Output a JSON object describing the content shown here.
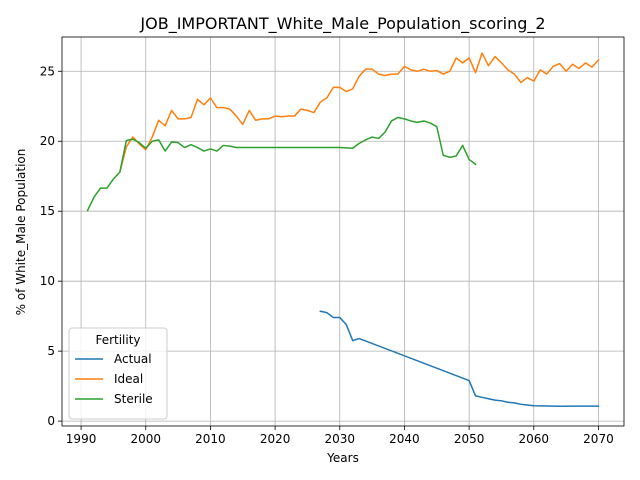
{
  "chart_data": {
    "type": "line",
    "title": "JOB_IMPORTANT_White_Male_Population_scoring_2",
    "xlabel": "Years",
    "ylabel": "% of White_Male Population",
    "xlim": [
      1987.05,
      2073.95
    ],
    "ylim": [
      -0.35,
      27.45
    ],
    "xticks": [
      1990,
      2000,
      2010,
      2020,
      2030,
      2040,
      2050,
      2060,
      2070
    ],
    "yticks": [
      0,
      5,
      10,
      15,
      20,
      25
    ],
    "grid": true,
    "legend": {
      "title": "Fertility",
      "position": "lower-left"
    },
    "series": [
      {
        "name": "Actual",
        "color": "#1f77b4",
        "x": [
          2027,
          2028,
          2029,
          2030,
          2031,
          2032,
          2033,
          2050,
          2051,
          2052,
          2053,
          2054,
          2055,
          2056,
          2057,
          2058,
          2059,
          2060,
          2062,
          2064,
          2066,
          2068,
          2070
        ],
        "y": [
          7.85,
          7.75,
          7.4,
          7.4,
          6.9,
          5.75,
          5.9,
          2.9,
          1.8,
          1.7,
          1.6,
          1.5,
          1.45,
          1.35,
          1.3,
          1.2,
          1.15,
          1.1,
          1.08,
          1.06,
          1.07,
          1.07,
          1.07
        ]
      },
      {
        "name": "Ideal",
        "color": "#ff7f0e",
        "x": [
          1996,
          1997,
          1998,
          1999,
          2000,
          2001,
          2002,
          2003,
          2004,
          2005,
          2006,
          2007,
          2008,
          2009,
          2010,
          2011,
          2012,
          2013,
          2014,
          2015,
          2016,
          2017,
          2018,
          2019,
          2020,
          2021,
          2022,
          2023,
          2024,
          2025,
          2026,
          2027,
          2028,
          2029,
          2030,
          2031,
          2032,
          2033,
          2034,
          2035,
          2036,
          2037,
          2038,
          2039,
          2040,
          2041,
          2042,
          2043,
          2044,
          2045,
          2046,
          2047,
          2048,
          2049,
          2050,
          2051,
          2052,
          2053,
          2054,
          2055,
          2056,
          2057,
          2058,
          2059,
          2060,
          2061,
          2062,
          2063,
          2064,
          2065,
          2066,
          2067,
          2068,
          2069,
          2070
        ],
        "y": [
          17.8,
          19.6,
          20.3,
          19.8,
          19.4,
          20.3,
          21.5,
          21.1,
          22.2,
          21.6,
          21.6,
          21.7,
          23.0,
          22.6,
          23.1,
          22.4,
          22.4,
          22.3,
          21.8,
          21.2,
          22.2,
          21.5,
          21.6,
          21.6,
          21.8,
          21.75,
          21.8,
          21.8,
          22.3,
          22.2,
          22.05,
          22.8,
          23.1,
          23.85,
          23.85,
          23.55,
          23.75,
          24.65,
          25.15,
          25.15,
          24.8,
          24.7,
          24.8,
          24.8,
          25.35,
          25.1,
          25.0,
          25.15,
          25.0,
          25.05,
          24.8,
          25.0,
          25.95,
          25.6,
          25.95,
          24.9,
          26.3,
          25.4,
          26.05,
          25.6,
          25.1,
          24.8,
          24.2,
          24.55,
          24.3,
          25.1,
          24.8,
          25.35,
          25.55,
          25.0,
          25.5,
          25.2,
          25.6,
          25.3,
          25.8
        ]
      },
      {
        "name": "Sterile",
        "color": "#2ca02c",
        "x": [
          1991,
          1992,
          1993,
          1994,
          1995,
          1996,
          1997,
          1998,
          1999,
          2000,
          2001,
          2002,
          2003,
          2004,
          2005,
          2006,
          2007,
          2008,
          2009,
          2010,
          2011,
          2012,
          2013,
          2014,
          2015,
          2016,
          2020,
          2025,
          2030,
          2032,
          2033,
          2034,
          2035,
          2036,
          2037,
          2038,
          2039,
          2040,
          2041,
          2042,
          2043,
          2044,
          2045,
          2046,
          2047,
          2048,
          2049,
          2050,
          2051
        ],
        "y": [
          15.05,
          16.0,
          16.65,
          16.65,
          17.3,
          17.8,
          20.05,
          20.15,
          19.9,
          19.5,
          20.0,
          20.1,
          19.3,
          19.95,
          19.9,
          19.55,
          19.75,
          19.55,
          19.3,
          19.45,
          19.3,
          19.7,
          19.65,
          19.55,
          19.55,
          19.55,
          19.55,
          19.55,
          19.55,
          19.5,
          19.85,
          20.1,
          20.3,
          20.2,
          20.65,
          21.45,
          21.7,
          21.6,
          21.45,
          21.35,
          21.45,
          21.3,
          21.05,
          19.0,
          18.85,
          18.95,
          19.7,
          18.7,
          18.35
        ]
      }
    ]
  }
}
